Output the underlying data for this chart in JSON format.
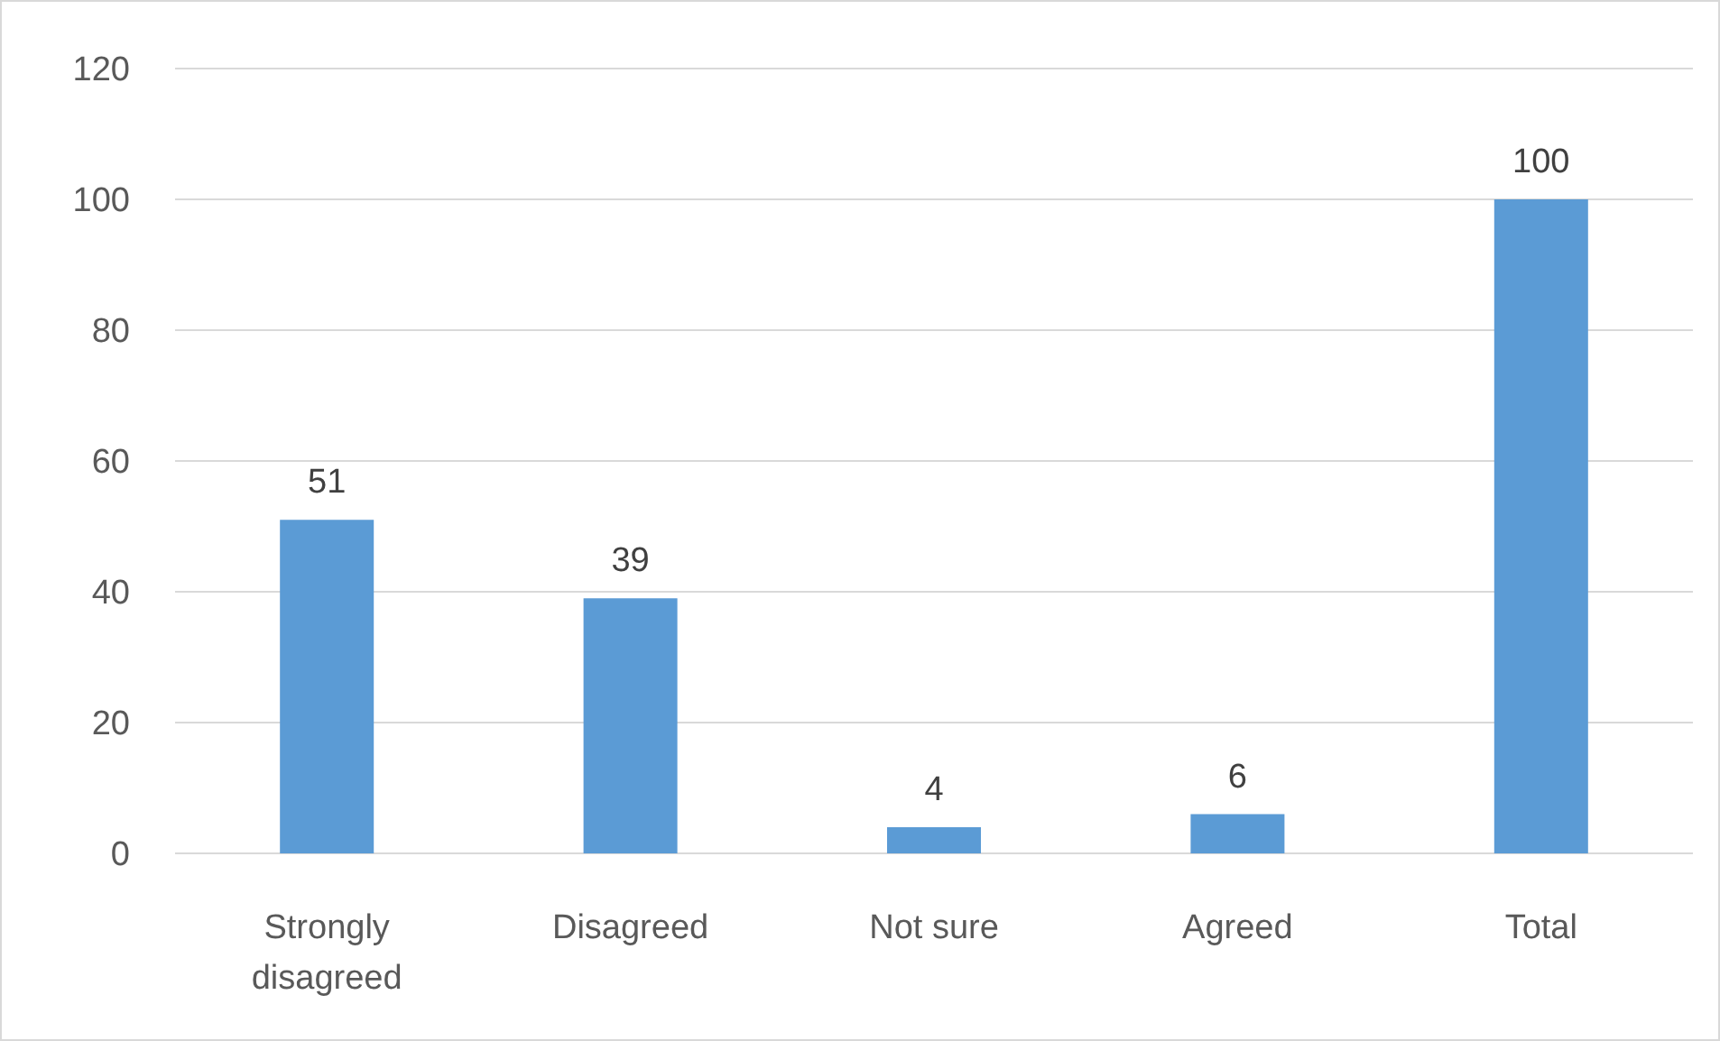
{
  "chart_data": {
    "type": "bar",
    "categories": [
      "Strongly disagreed",
      "Disagreed",
      "Not sure",
      "Agreed",
      "Total"
    ],
    "values": [
      51,
      39,
      4,
      6,
      100
    ],
    "color": "#5b9bd5",
    "ylim": [
      0,
      120
    ],
    "yticks": [
      0,
      20,
      40,
      60,
      80,
      100,
      120
    ],
    "grid": "y",
    "data_labels": true
  }
}
